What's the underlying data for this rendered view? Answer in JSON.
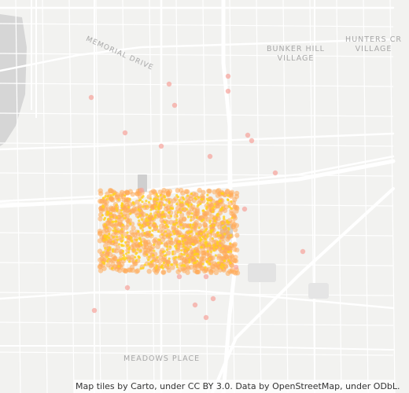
{
  "map": {
    "labels": {
      "memorial_drive": "MEMORIAL DRIVE",
      "bunker_hill_1": "BUNKER HILL",
      "bunker_hill_2": "VILLAGE",
      "hunters_1": "HUNTERS CR",
      "hunters_2": "VILLAGE",
      "meadows_place": "MEADOWS PLACE"
    },
    "attribution": "Map tiles by Carto, under CC BY 3.0. Data by OpenStreetMap, under ODbL.",
    "colors": {
      "background": "#f2f2f0",
      "water": "#d4d4d4",
      "road": "#ffffff",
      "dot_orange": "#ffaa55",
      "dot_yellow": "#ffd21a",
      "dot_pink": "#f6a29a"
    }
  }
}
